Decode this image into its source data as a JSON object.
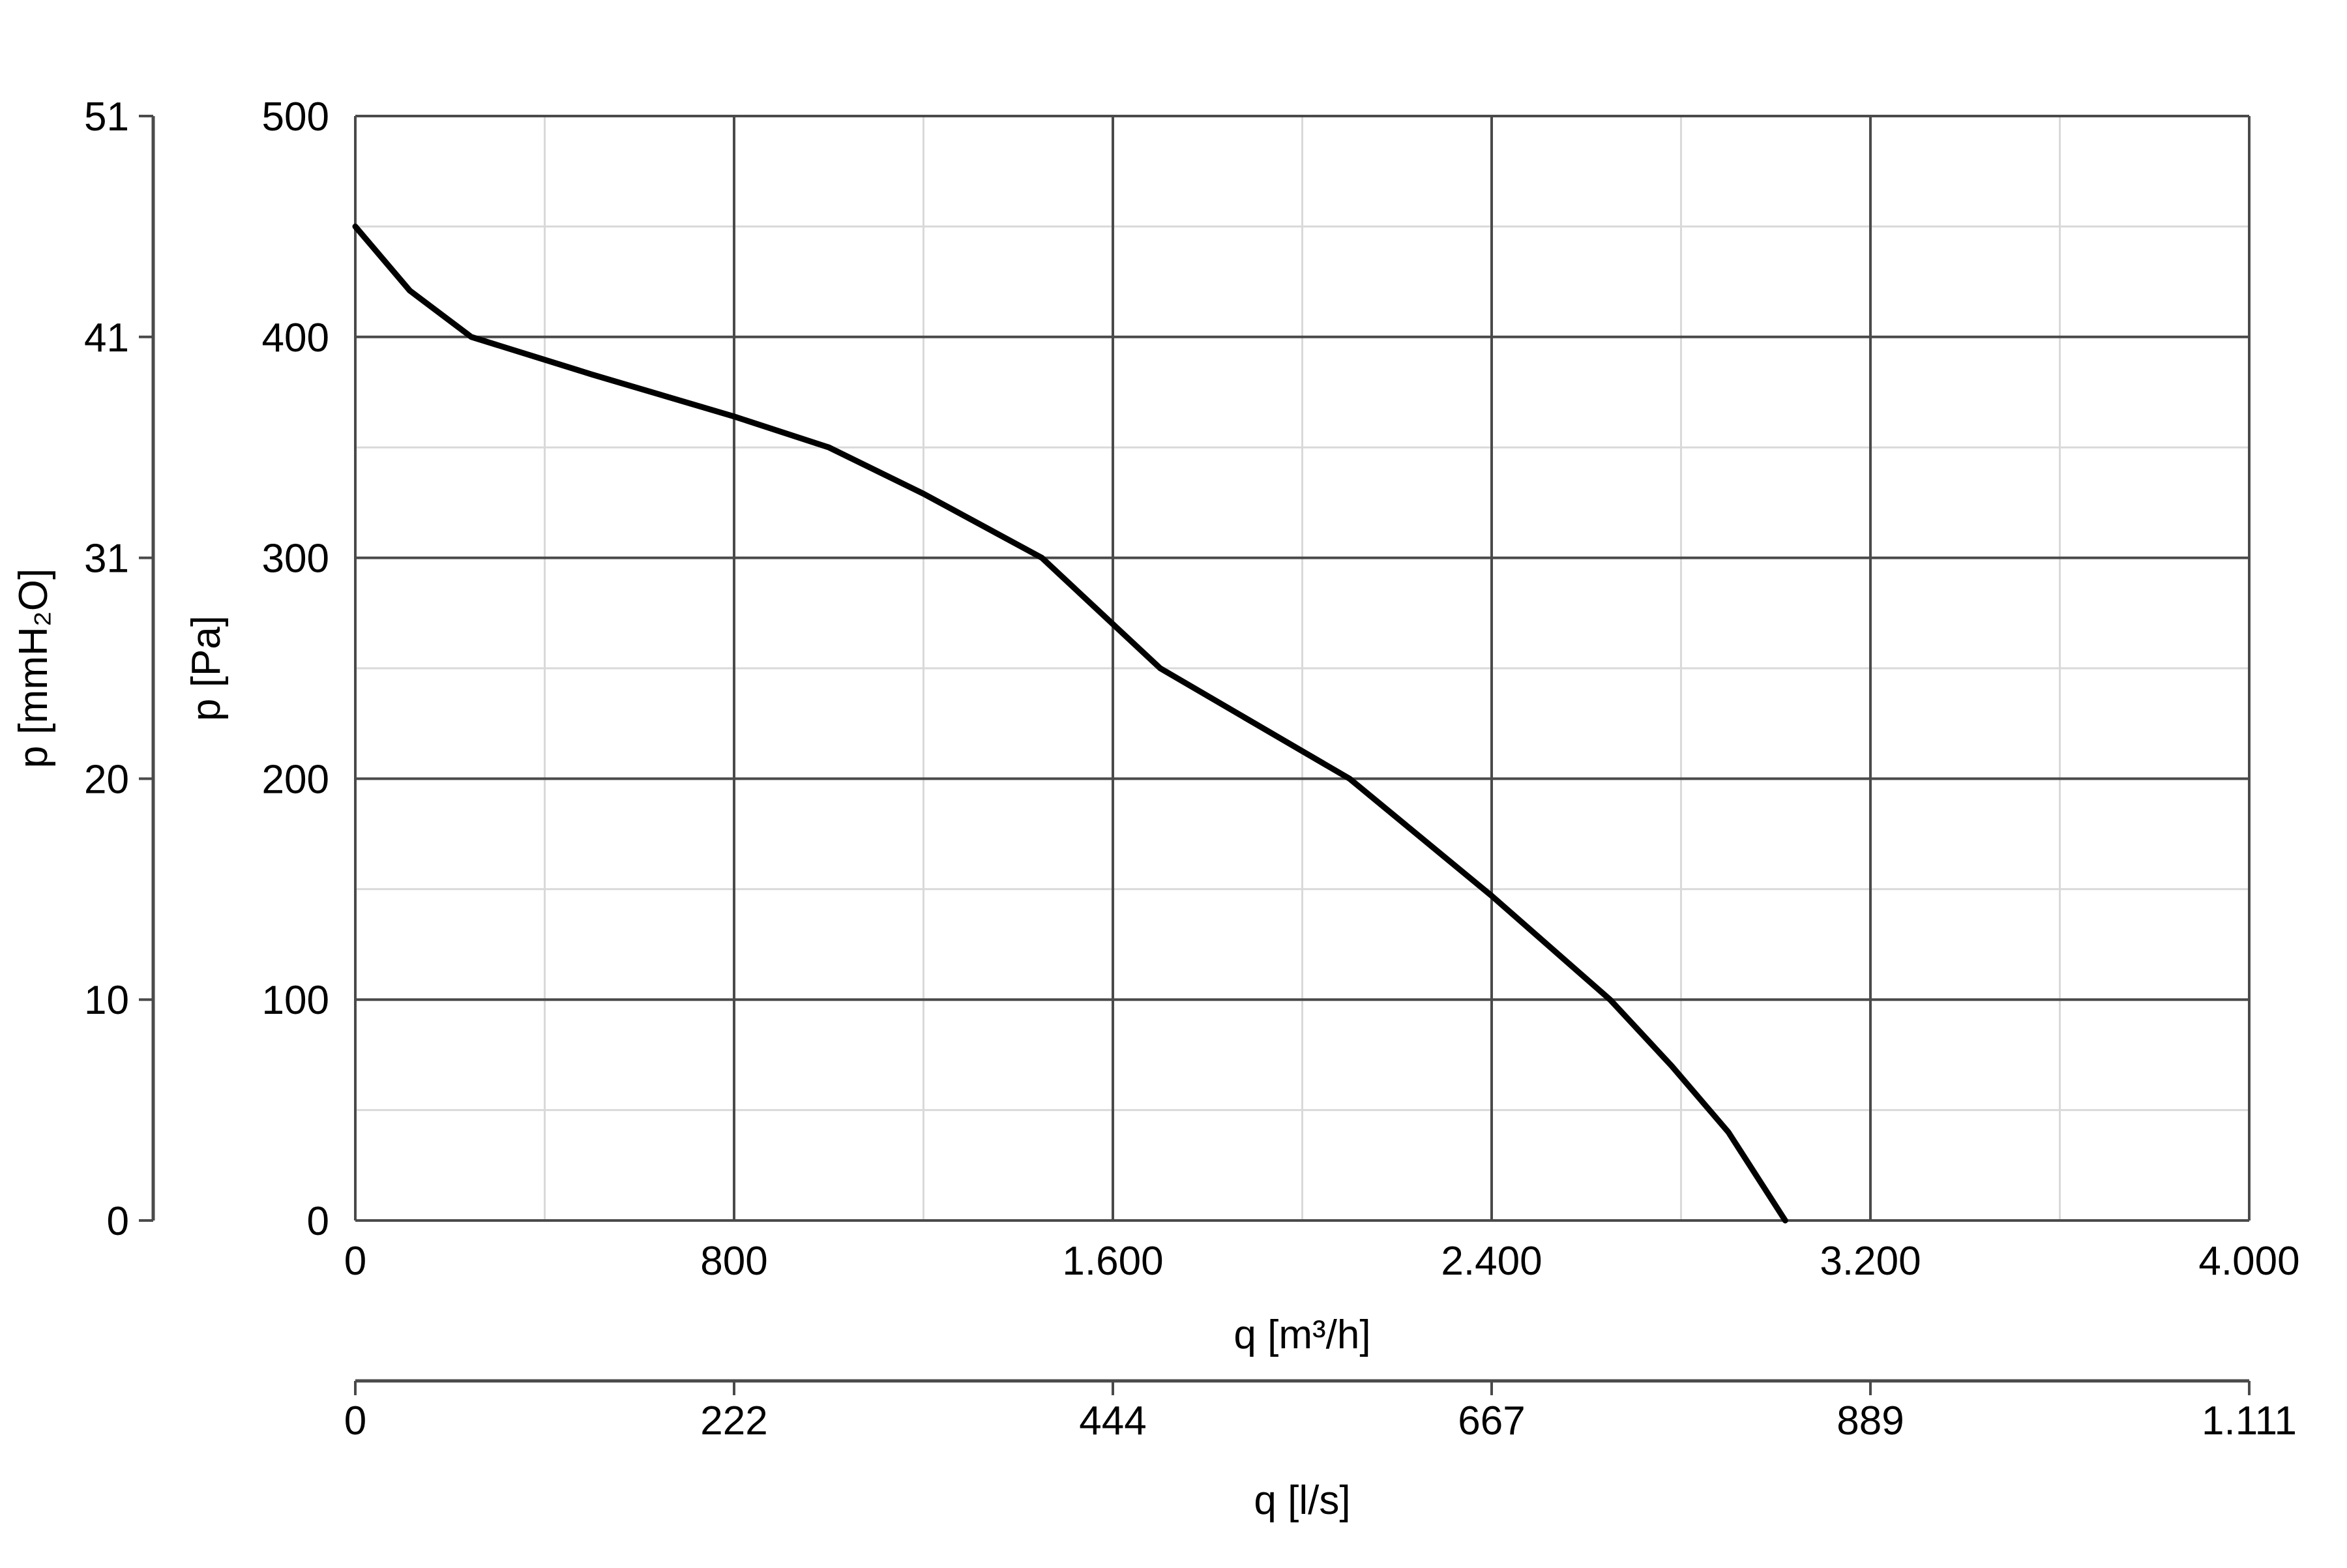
{
  "chart_data": {
    "type": "line",
    "x_axis": {
      "label": "q [m³/h]",
      "range": [
        0,
        4000
      ],
      "ticks": [
        0,
        800,
        1600,
        2400,
        3200,
        4000
      ],
      "tick_labels": [
        "0",
        "800",
        "1.600",
        "2.400",
        "3.200",
        "4.000"
      ],
      "minor_gridlines": [
        400,
        1200,
        2000,
        2800,
        3600
      ]
    },
    "x2_axis": {
      "label": "q [l/s]",
      "range": [
        0,
        1111
      ],
      "tick_labels": [
        "0",
        "222",
        "444",
        "667",
        "889",
        "1.111"
      ]
    },
    "y_axis": {
      "label": "p [Pa]",
      "range": [
        0,
        500
      ],
      "ticks": [
        0,
        100,
        200,
        300,
        400,
        500
      ],
      "tick_labels": [
        "0",
        "100",
        "200",
        "300",
        "400",
        "500"
      ],
      "minor_gridlines": [
        50,
        150,
        250,
        350,
        450
      ]
    },
    "y2_axis": {
      "label": "p [mmH₂O]",
      "range": [
        0,
        51
      ],
      "tick_labels": [
        "0",
        "10",
        "20",
        "31",
        "41",
        "51"
      ]
    },
    "grid": true,
    "series": [
      {
        "color": "#000000",
        "points": [
          {
            "x": 0,
            "y": 450
          },
          {
            "x": 115,
            "y": 421
          },
          {
            "x": 245,
            "y": 400
          },
          {
            "x": 500,
            "y": 383
          },
          {
            "x": 800,
            "y": 364
          },
          {
            "x": 1000,
            "y": 350
          },
          {
            "x": 1200,
            "y": 329
          },
          {
            "x": 1450,
            "y": 300
          },
          {
            "x": 1700,
            "y": 250
          },
          {
            "x": 2100,
            "y": 200
          },
          {
            "x": 2400,
            "y": 147
          },
          {
            "x": 2650,
            "y": 100
          },
          {
            "x": 2780,
            "y": 70
          },
          {
            "x": 2900,
            "y": 40
          },
          {
            "x": 3020,
            "y": 0
          }
        ]
      }
    ]
  }
}
